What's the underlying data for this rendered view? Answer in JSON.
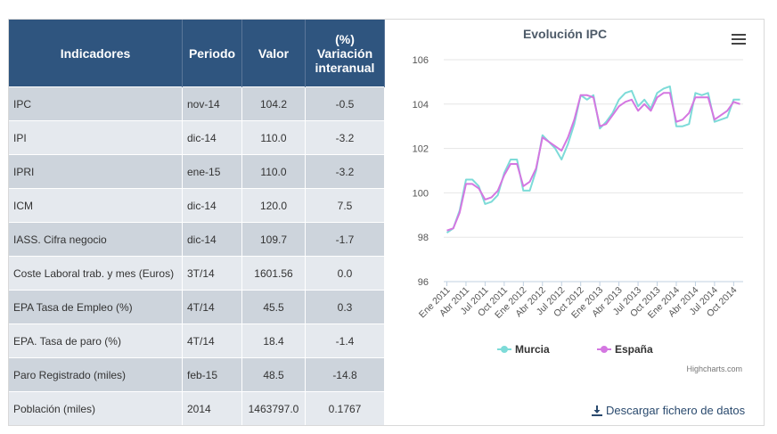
{
  "table": {
    "headers": [
      "Indicadores",
      "Periodo",
      "Valor",
      "(%) Variación interanual"
    ],
    "rows": [
      {
        "indicador": "IPC",
        "periodo": "nov-14",
        "valor": "104.2",
        "variacion": "-0.5"
      },
      {
        "indicador": "IPI",
        "periodo": "dic-14",
        "valor": "110.0",
        "variacion": "-3.2"
      },
      {
        "indicador": "IPRI",
        "periodo": "ene-15",
        "valor": "110.0",
        "variacion": "-3.2"
      },
      {
        "indicador": "ICM",
        "periodo": "dic-14",
        "valor": "120.0",
        "variacion": "7.5"
      },
      {
        "indicador": "IASS. Cifra negocio",
        "periodo": "dic-14",
        "valor": "109.7",
        "variacion": "-1.7"
      },
      {
        "indicador": "Coste Laboral trab. y mes (Euros)",
        "periodo": "3T/14",
        "valor": "1601.56",
        "variacion": "0.0"
      },
      {
        "indicador": "EPA Tasa de Empleo (%)",
        "periodo": "4T/14",
        "valor": "45.5",
        "variacion": "0.3"
      },
      {
        "indicador": "EPA. Tasa de paro (%)",
        "periodo": "4T/14",
        "valor": "18.4",
        "variacion": "-1.4"
      },
      {
        "indicador": "Paro Registrado (miles)",
        "periodo": "feb-15",
        "valor": "48.5",
        "variacion": "-14.8"
      },
      {
        "indicador": "Población (miles)",
        "periodo": "2014",
        "valor": "1463797.0",
        "variacion": "0.1767"
      }
    ]
  },
  "chart_data": {
    "type": "line",
    "title": "Evolución IPC",
    "xlabel": "",
    "ylabel": "",
    "ylim": [
      96,
      106
    ],
    "yticks": [
      96,
      98,
      100,
      102,
      104,
      106
    ],
    "grid": true,
    "legend_position": "bottom",
    "x": [
      "Ene 2011",
      "Feb 2011",
      "Mar 2011",
      "Abr 2011",
      "May 2011",
      "Jun 2011",
      "Jul 2011",
      "Ago 2011",
      "Sep 2011",
      "Oct 2011",
      "Nov 2011",
      "Dic 2011",
      "Ene 2012",
      "Feb 2012",
      "Mar 2012",
      "Abr 2012",
      "May 2012",
      "Jun 2012",
      "Jul 2012",
      "Ago 2012",
      "Sep 2012",
      "Oct 2012",
      "Nov 2012",
      "Dic 2012",
      "Ene 2013",
      "Feb 2013",
      "Mar 2013",
      "Abr 2013",
      "May 2013",
      "Jun 2013",
      "Jul 2013",
      "Ago 2013",
      "Sep 2013",
      "Oct 2013",
      "Nov 2013",
      "Dic 2013",
      "Ene 2014",
      "Feb 2014",
      "Mar 2014",
      "Abr 2014",
      "May 2014",
      "Jun 2014",
      "Jul 2014",
      "Ago 2014",
      "Sep 2014",
      "Oct 2014",
      "Nov 2014"
    ],
    "x_tick_labels": [
      "Ene 2011",
      "Abr 2011",
      "Jul 2011",
      "Oct 2011",
      "Ene 2012",
      "Abr 2012",
      "Jul 2012",
      "Oct 2012",
      "Ene 2013",
      "Abr 2013",
      "Jul 2013",
      "Oct 2013",
      "Ene 2014",
      "Abr 2014",
      "Jul 2014",
      "Oct 2014"
    ],
    "series": [
      {
        "name": "Murcia",
        "color": "#7ddbd8",
        "values": [
          98.2,
          98.4,
          99.2,
          100.6,
          100.6,
          100.3,
          99.5,
          99.6,
          99.9,
          100.9,
          101.5,
          101.5,
          100.1,
          100.1,
          101.0,
          102.6,
          102.3,
          102.0,
          101.5,
          102.2,
          103.1,
          104.4,
          104.2,
          104.4,
          102.9,
          103.2,
          103.6,
          104.2,
          104.5,
          104.6,
          103.9,
          104.2,
          103.8,
          104.5,
          104.7,
          104.8,
          103.0,
          103.0,
          103.1,
          104.5,
          104.4,
          104.5,
          103.2,
          103.3,
          103.4,
          104.2,
          104.2
        ]
      },
      {
        "name": "España",
        "color": "#d477e1",
        "values": [
          98.3,
          98.4,
          99.1,
          100.4,
          100.4,
          100.2,
          99.7,
          99.8,
          100.1,
          100.8,
          101.3,
          101.3,
          100.3,
          100.5,
          101.1,
          102.5,
          102.3,
          102.1,
          101.9,
          102.5,
          103.3,
          104.4,
          104.4,
          104.3,
          103.0,
          103.1,
          103.5,
          103.9,
          104.1,
          104.2,
          103.7,
          104.0,
          103.7,
          104.3,
          104.5,
          104.5,
          103.2,
          103.3,
          103.6,
          104.3,
          104.3,
          104.3,
          103.3,
          103.5,
          103.7,
          104.1,
          104.0
        ]
      }
    ]
  },
  "credits": "Highcharts.com",
  "download_label": "Descargar fichero de datos"
}
